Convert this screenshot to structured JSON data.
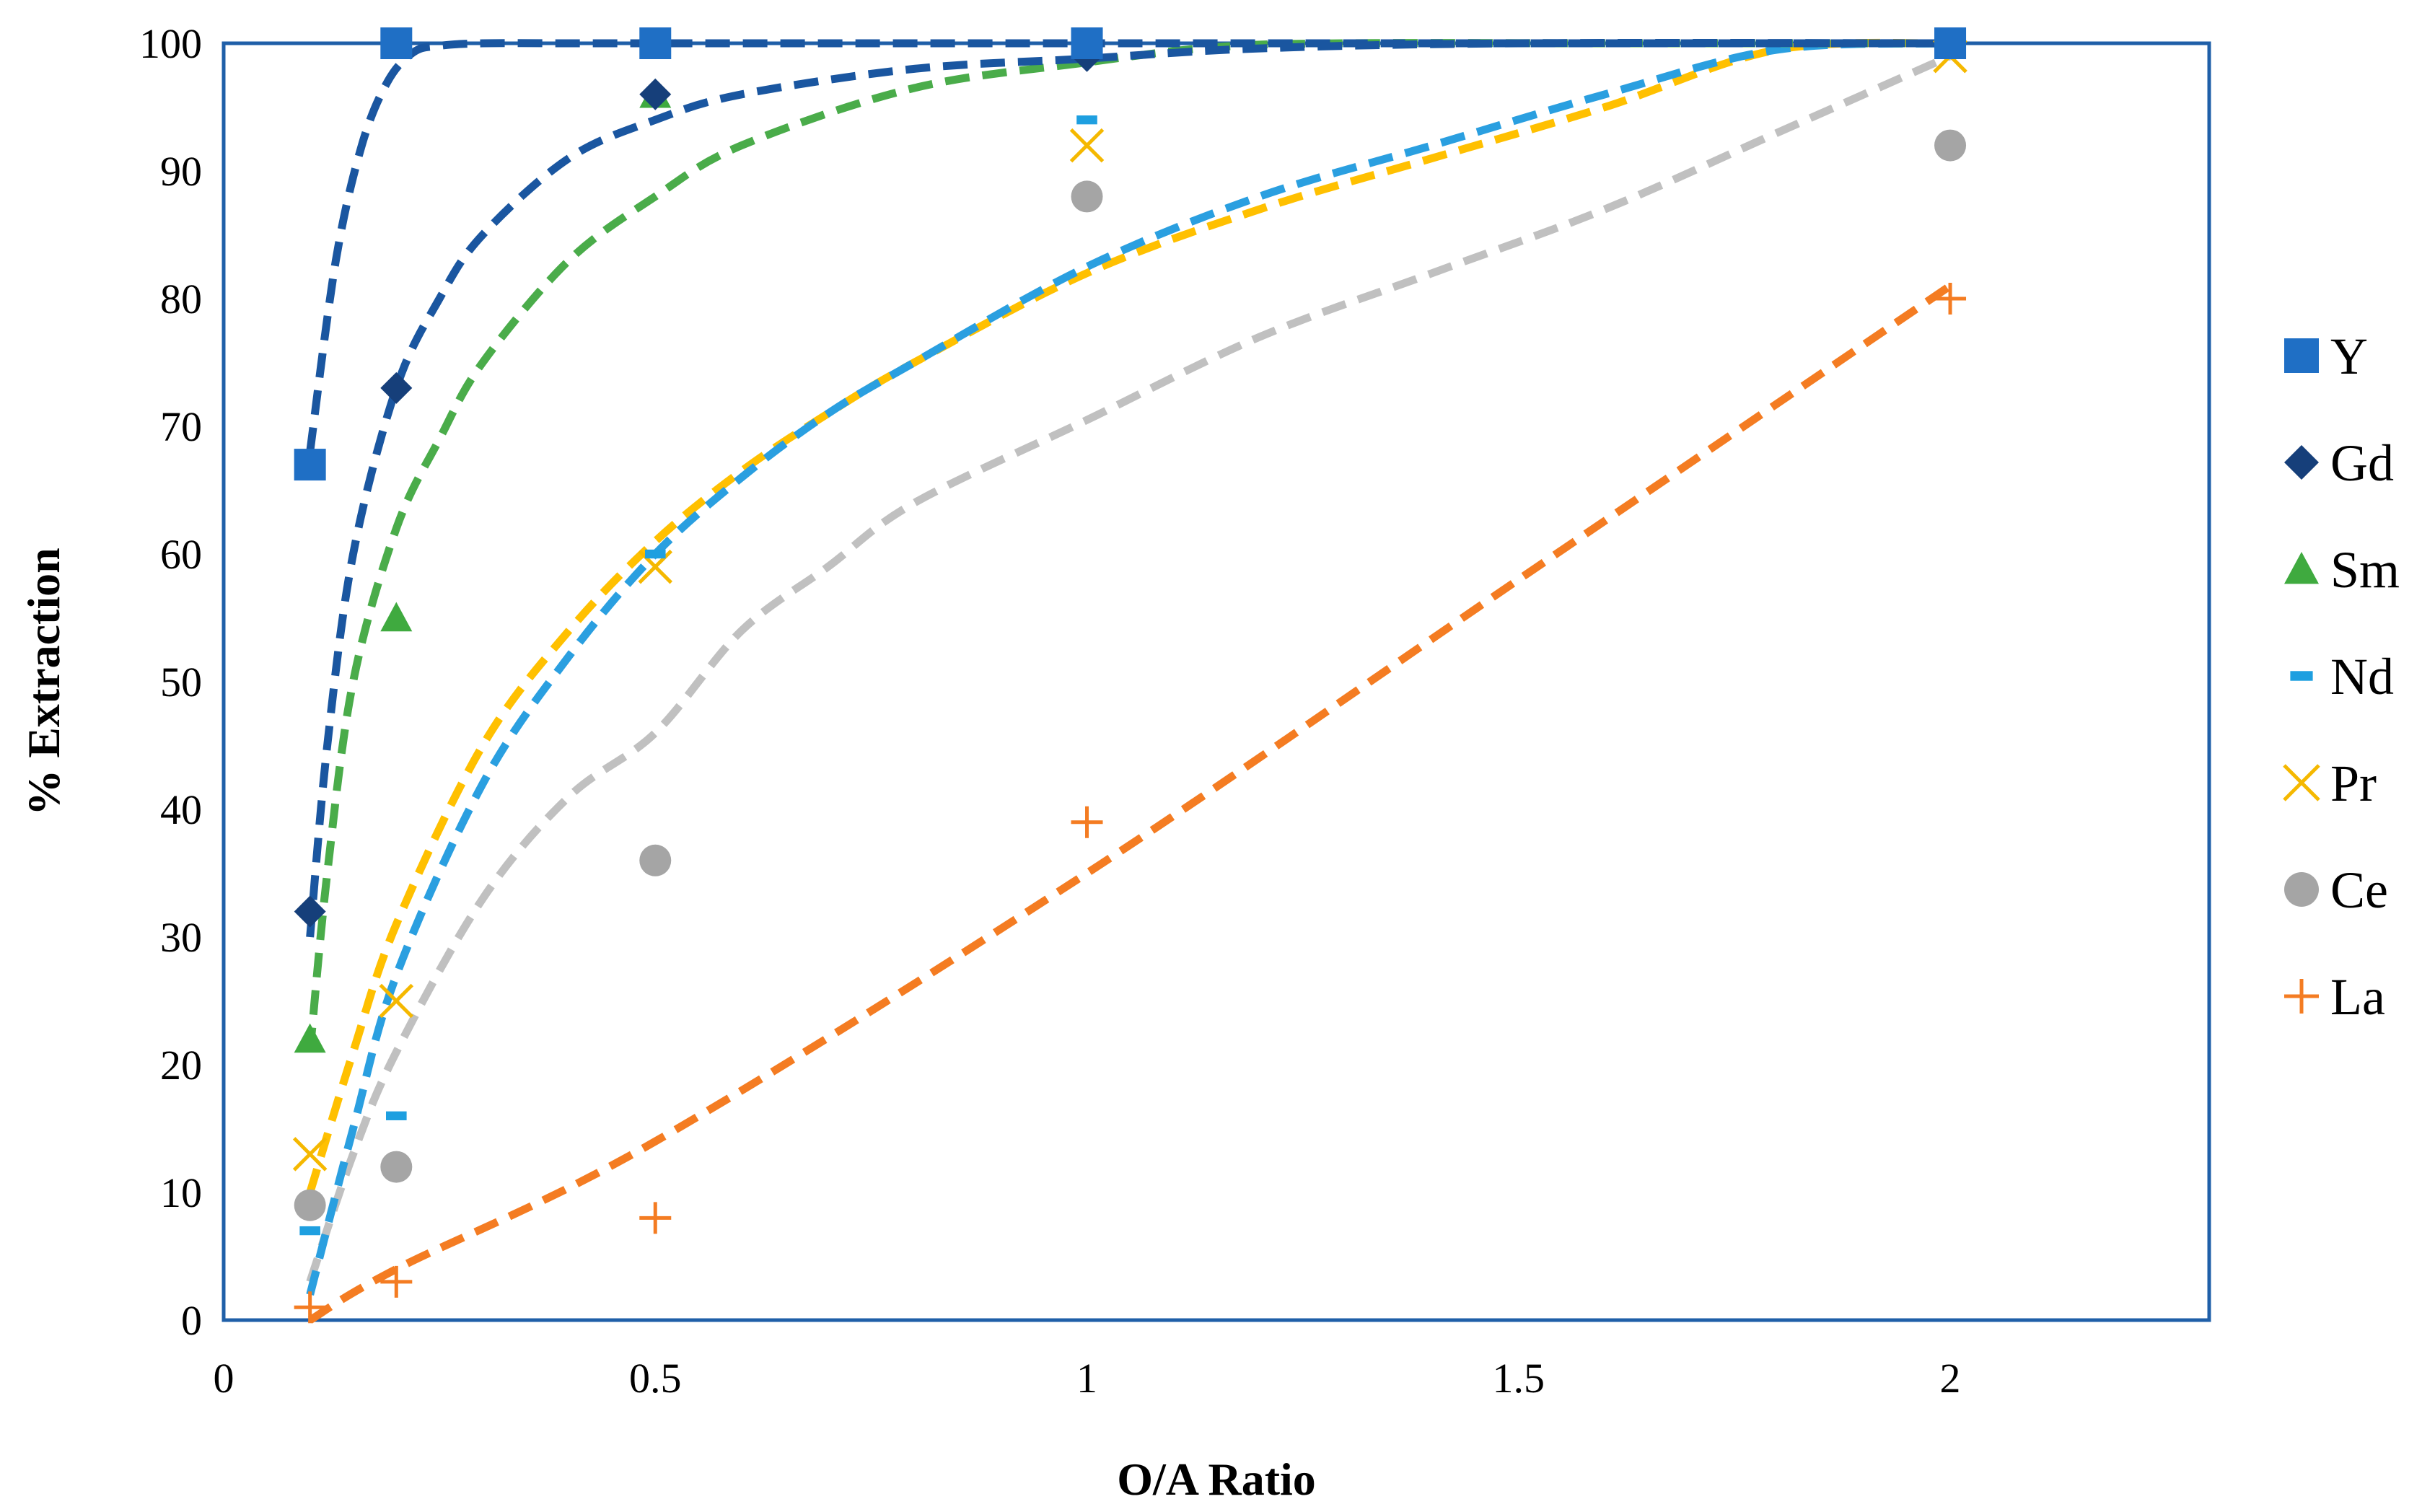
{
  "chart_data": {
    "type": "scatter",
    "title": "",
    "xlabel": "O/A Ratio",
    "ylabel": "% Extraction",
    "xlim": [
      0,
      2.3
    ],
    "ylim": [
      0,
      100
    ],
    "xticks": [
      0,
      0.5,
      1,
      1.5,
      2
    ],
    "xtick_labels": [
      "0",
      "0.5",
      "1",
      "1.5",
      "2"
    ],
    "yticks": [
      0,
      10,
      20,
      30,
      40,
      50,
      60,
      70,
      80,
      90,
      100
    ],
    "ytick_labels": [
      "0",
      "10",
      "20",
      "30",
      "40",
      "50",
      "60",
      "70",
      "80",
      "90",
      "100"
    ],
    "grid": false,
    "legend_position": "right",
    "series": [
      {
        "name": "Y",
        "marker": "square",
        "color": "#1f6fc5",
        "x": [
          0.1,
          0.2,
          0.5,
          1,
          2
        ],
        "y": [
          67,
          100,
          100,
          100,
          100
        ],
        "trend": {
          "color": "#1a56a0",
          "x": [
            0.1,
            0.13,
            0.16,
            0.19,
            0.22,
            0.25,
            0.3,
            0.4,
            0.5,
            0.7,
            1.0,
            1.5,
            2.0
          ],
          "y": [
            68,
            83,
            92,
            97,
            99.3,
            99.8,
            100,
            100,
            100,
            100,
            100,
            100,
            100
          ]
        }
      },
      {
        "name": "Gd",
        "marker": "diamond",
        "color": "#163f7a",
        "x": [
          0.1,
          0.2,
          0.5,
          1,
          2
        ],
        "y": [
          32,
          73,
          96,
          99,
          100
        ],
        "trend": {
          "color": "#1a56a0",
          "x": [
            0.1,
            0.12,
            0.15,
            0.2,
            0.25,
            0.3,
            0.4,
            0.5,
            0.6,
            0.8,
            1.0,
            1.2,
            1.5,
            2.0
          ],
          "y": [
            30,
            45,
            60,
            73,
            80,
            85,
            91,
            94,
            96,
            98,
            98.8,
            99.6,
            100,
            100
          ]
        }
      },
      {
        "name": "Sm",
        "marker": "triangle",
        "color": "#3faa3f",
        "x": [
          0.1,
          0.2,
          0.5,
          1,
          2
        ],
        "y": [
          22,
          55,
          96,
          100,
          100
        ],
        "trend": {
          "color": "#4aac4a",
          "x": [
            0.1,
            0.12,
            0.15,
            0.2,
            0.25,
            0.3,
            0.4,
            0.5,
            0.6,
            0.8,
            1.0,
            1.15,
            1.3,
            1.6,
            2.0
          ],
          "y": [
            21,
            35,
            50,
            62,
            69,
            75,
            83,
            88,
            92,
            96.5,
            98.5,
            99.7,
            100,
            100,
            100
          ]
        }
      },
      {
        "name": "Nd",
        "marker": "dash",
        "color": "#1e9fe0",
        "x": [
          0.1,
          0.2,
          0.5,
          1,
          2
        ],
        "y": [
          7,
          16,
          60,
          94,
          100
        ],
        "trend": {
          "color": "#2a9fe0",
          "x": [
            0.1,
            0.15,
            0.2,
            0.3,
            0.4,
            0.5,
            0.6,
            0.7,
            0.8,
            1.0,
            1.2,
            1.4,
            1.6,
            1.8,
            2.0
          ],
          "y": [
            2,
            15,
            27,
            42,
            52,
            60,
            66,
            71,
            75,
            82.5,
            88,
            92,
            96,
            99.5,
            100
          ]
        }
      },
      {
        "name": "Pr",
        "marker": "x",
        "color": "#f5b800",
        "x": [
          0.1,
          0.2,
          0.5,
          1,
          2
        ],
        "y": [
          13,
          25,
          59,
          92,
          99
        ],
        "trend": {
          "color": "#ffc000",
          "x": [
            0.1,
            0.15,
            0.2,
            0.3,
            0.4,
            0.5,
            0.6,
            0.7,
            0.8,
            1.0,
            1.2,
            1.4,
            1.6,
            1.8,
            2.0
          ],
          "y": [
            10,
            21,
            31,
            45,
            54,
            61,
            66.5,
            71,
            75,
            82,
            87,
            91,
            95,
            99.5,
            100
          ]
        }
      },
      {
        "name": "Ce",
        "marker": "circle",
        "color": "#a5a5a5",
        "x": [
          0.1,
          0.2,
          0.5,
          1,
          2
        ],
        "y": [
          9,
          12,
          36,
          88,
          92
        ],
        "trend": {
          "color": "#c0c0c0",
          "x": [
            0.1,
            0.15,
            0.2,
            0.3,
            0.4,
            0.5,
            0.6,
            0.7,
            0.8,
            1.0,
            1.2,
            1.4,
            1.6,
            1.8,
            2.0
          ],
          "y": [
            3,
            13,
            21,
            33,
            41,
            46,
            54,
            59,
            64,
            70.5,
            77,
            82,
            87,
            93,
            99
          ]
        }
      },
      {
        "name": "La",
        "marker": "plus",
        "color": "#f47c22",
        "x": [
          0.1,
          0.2,
          0.5,
          1,
          2
        ],
        "y": [
          1,
          3,
          8,
          39,
          80
        ],
        "trend": {
          "color": "#f47c22",
          "x": [
            0.1,
            0.2,
            0.5,
            1.0,
            1.5,
            2.0
          ],
          "y": [
            0,
            4,
            14,
            35,
            58,
            81
          ]
        }
      }
    ]
  }
}
